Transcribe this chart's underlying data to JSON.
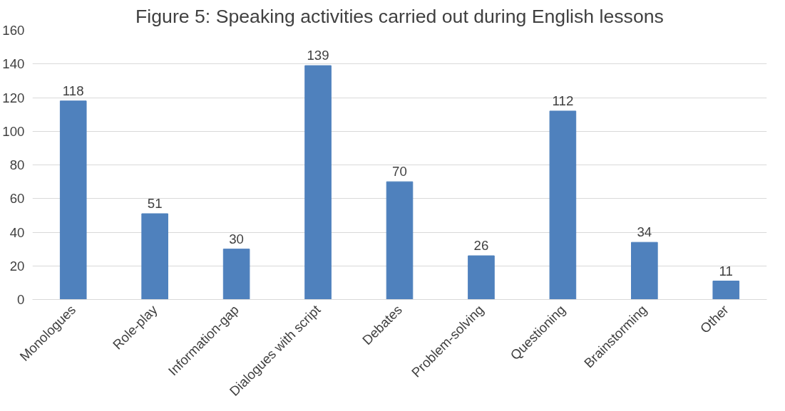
{
  "chart_data": {
    "type": "bar",
    "title": "Figure 5: Speaking activities carried out during English lessons",
    "categories": [
      "Monologues",
      "Role-play",
      "Information-gap",
      "Dialogues with script",
      "Debates",
      "Problem-solving",
      "Questioning",
      "Brainstorming",
      "Other"
    ],
    "values": [
      118,
      51,
      30,
      139,
      70,
      26,
      112,
      34,
      11
    ],
    "color": "#4f81bd",
    "ylim": [
      0,
      160
    ],
    "yticks": [
      0,
      20,
      40,
      60,
      80,
      100,
      120,
      140,
      160
    ],
    "grid": "y",
    "data_labels": true
  }
}
